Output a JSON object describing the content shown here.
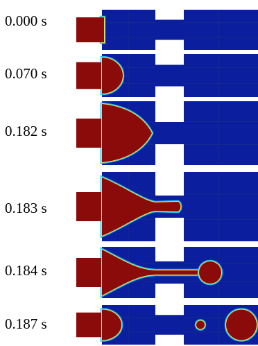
{
  "colors": {
    "liquid": "#8b0a0a",
    "background": "#0a1e9e",
    "interface_outer": "#12c7f0",
    "interface_mid": "#f2e25a",
    "mesh_line": "#1c2f86"
  },
  "frames": [
    {
      "time": "0.000 s",
      "stage": "initial"
    },
    {
      "time": "0.070 s",
      "stage": "bulge"
    },
    {
      "time": "0.182 s",
      "stage": "cone"
    },
    {
      "time": "0.183 s",
      "stage": "thread-entering"
    },
    {
      "time": "0.184 s",
      "stage": "thread-bulb"
    },
    {
      "time": "0.187 s",
      "stage": "pinch-off-droplets"
    }
  ]
}
